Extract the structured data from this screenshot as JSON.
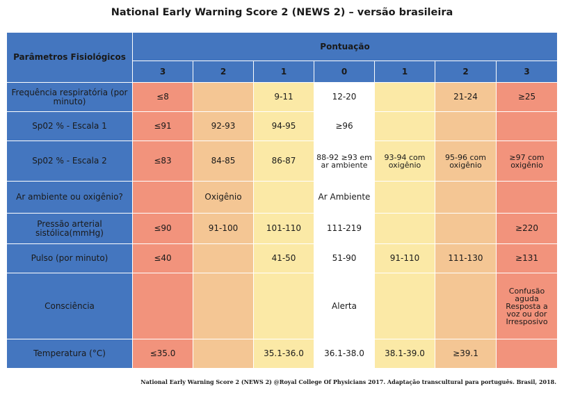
{
  "title": "National Early Warning Score 2 (NEWS 2) – versão brasileira",
  "header": {
    "param_label": "Parâmetros Fisiológicos",
    "score_label": "Pontuação",
    "scores": [
      "3",
      "2",
      "1",
      "0",
      "1",
      "2",
      "3"
    ]
  },
  "rows": [
    {
      "param": "Frequência respiratória (por minuto)",
      "cells": [
        "≤8",
        "",
        "9-11",
        "12-20",
        "",
        "21-24",
        "≥25"
      ]
    },
    {
      "param": "Sp02 % - Escala 1",
      "cells": [
        "≤91",
        "92-93",
        "94-95",
        "≥96",
        "",
        "",
        ""
      ]
    },
    {
      "param": "Sp02 % - Escala 2",
      "cells": [
        "≤83",
        "84-85",
        "86-87",
        "88-92 ≥93 em ar ambiente",
        "93-94 com oxigênio",
        "95-96 com oxigênio",
        "≥97 com oxigênio"
      ]
    },
    {
      "param": "Ar ambiente ou oxigênio?",
      "cells": [
        "",
        "Oxigênio",
        "",
        "Ar Ambiente",
        "",
        "",
        ""
      ]
    },
    {
      "param": "Pressão arterial sistólica(mmHg)",
      "cells": [
        "≤90",
        "91-100",
        "101-110",
        "111-219",
        "",
        "",
        "≥220"
      ]
    },
    {
      "param": "Pulso (por minuto)",
      "cells": [
        "≤40",
        "",
        "41-50",
        "51-90",
        "91-110",
        "111-130",
        "≥131"
      ]
    },
    {
      "param": "Consciência",
      "cells": [
        "",
        "",
        "",
        "Alerta",
        "",
        "",
        "Confusão aguda Resposta a voz ou dor Irresposivo"
      ]
    },
    {
      "param": "Temperatura (°C)",
      "cells": [
        "≤35.0",
        "",
        "35.1-36.0",
        "36.1-38.0",
        "38.1-39.0",
        "≥39.1",
        ""
      ]
    }
  ],
  "colors": {
    "header_blue": "#4476bf",
    "score_3": "#f2937c",
    "score_2": "#f4c694",
    "score_1": "#fbe9a6",
    "score_0": "#ffffff"
  },
  "footer": "National Early Warning Score 2 (NEWS 2) @Royal College Of Physicians 2017. Adaptação transcultural para português. Brasil, 2018."
}
